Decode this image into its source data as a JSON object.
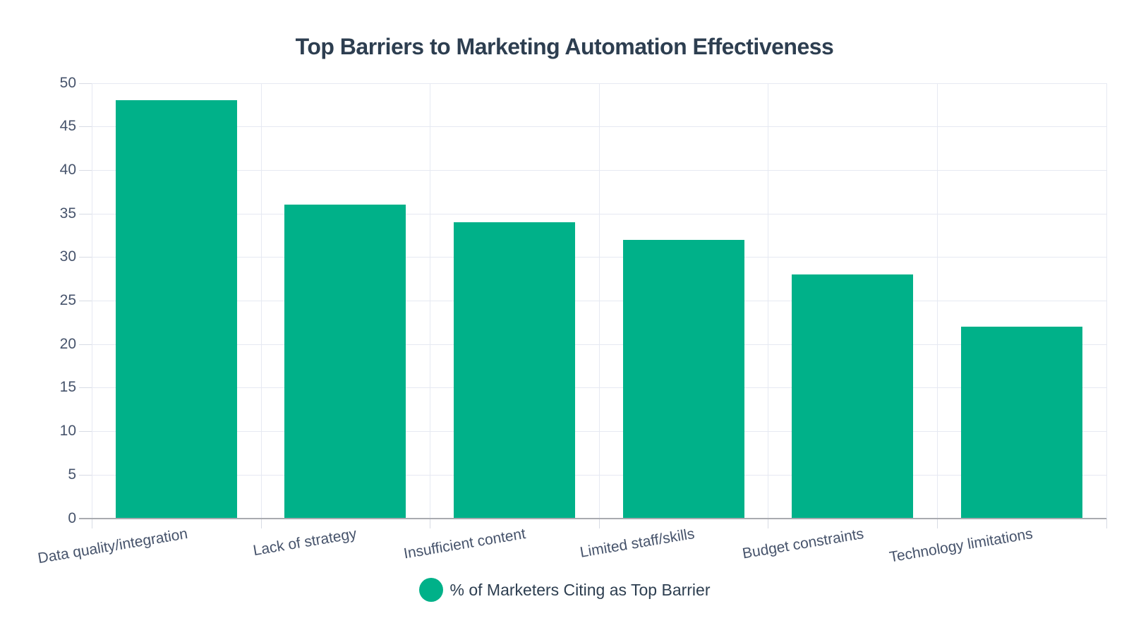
{
  "title": "Top Barriers to Marketing Automation Effectiveness",
  "legend": {
    "label": "% of Marketers Citing as Top Barrier"
  },
  "chart_data": {
    "type": "bar",
    "title": "Top Barriers to Marketing Automation Effectiveness",
    "categories": [
      "Data quality/integration",
      "Lack of strategy",
      "Insufficient content",
      "Limited staff/skills",
      "Budget constraints",
      "Technology limitations"
    ],
    "series": [
      {
        "name": "% of Marketers Citing as Top Barrier",
        "values": [
          48,
          36,
          34,
          32,
          28,
          22
        ]
      }
    ],
    "xlabel": "",
    "ylabel": "",
    "ylim": [
      0,
      50
    ],
    "ytick_interval": 5,
    "ytick_labels": [
      "0",
      "5",
      "10",
      "15",
      "20",
      "25",
      "30",
      "35",
      "40",
      "45",
      "50"
    ],
    "grid": true,
    "legend_position": "bottom-center",
    "colors": {
      "bar": "#00b189",
      "grid": "#e6e9f2",
      "axis": "#a9abb0",
      "tick": "#d7dbe4",
      "title_text": "#2d3e50",
      "tick_text": "#46536b"
    }
  }
}
